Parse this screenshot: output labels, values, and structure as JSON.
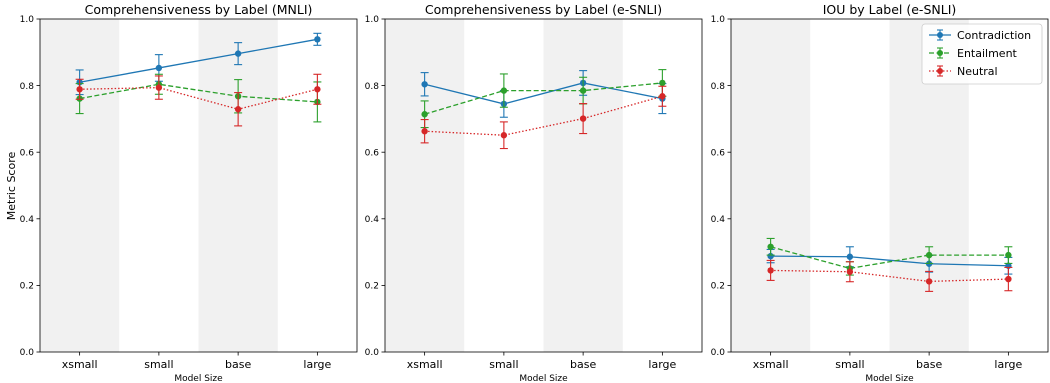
{
  "figure": {
    "ylabel": "Metric Score"
  },
  "chart_data": [
    {
      "type": "line",
      "title": "Comprehensiveness by Label (MNLI)",
      "xlabel": "Model Size",
      "ylabel": "Metric Score",
      "categories": [
        "xsmall",
        "small",
        "base",
        "large"
      ],
      "ylim": [
        0.0,
        1.0
      ],
      "yticks": [
        "0.0",
        "0.2",
        "0.4",
        "0.6",
        "0.8",
        "1.0"
      ],
      "shaded_categories": [
        "xsmall",
        "base"
      ],
      "series": [
        {
          "name": "Contradiction",
          "color": "#1f77b4",
          "linestyle": "solid",
          "values": [
            0.81,
            0.853,
            0.896,
            0.939
          ],
          "errors": [
            0.037,
            0.04,
            0.033,
            0.018
          ]
        },
        {
          "name": "Entailment",
          "color": "#2ca02c",
          "linestyle": "dashed",
          "values": [
            0.761,
            0.804,
            0.768,
            0.751
          ],
          "errors": [
            0.045,
            0.03,
            0.05,
            0.06
          ]
        },
        {
          "name": "Neutral",
          "color": "#d62728",
          "linestyle": "dotted",
          "values": [
            0.789,
            0.794,
            0.729,
            0.789
          ],
          "errors": [
            0.03,
            0.035,
            0.05,
            0.045
          ]
        }
      ]
    },
    {
      "type": "line",
      "title": "Comprehensiveness by Label (e-SNLI)",
      "xlabel": "Model Size",
      "ylabel": "",
      "categories": [
        "xsmall",
        "small",
        "base",
        "large"
      ],
      "ylim": [
        0.0,
        1.0
      ],
      "yticks": [
        "0.0",
        "0.2",
        "0.4",
        "0.6",
        "0.8",
        "1.0"
      ],
      "shaded_categories": [
        "xsmall",
        "base"
      ],
      "series": [
        {
          "name": "Contradiction",
          "color": "#1f77b4",
          "linestyle": "solid",
          "values": [
            0.804,
            0.745,
            0.808,
            0.761
          ],
          "errors": [
            0.035,
            0.04,
            0.037,
            0.045
          ]
        },
        {
          "name": "Entailment",
          "color": "#2ca02c",
          "linestyle": "dashed",
          "values": [
            0.714,
            0.785,
            0.785,
            0.808
          ],
          "errors": [
            0.04,
            0.05,
            0.04,
            0.04
          ]
        },
        {
          "name": "Neutral",
          "color": "#d62728",
          "linestyle": "dotted",
          "values": [
            0.663,
            0.651,
            0.701,
            0.768
          ],
          "errors": [
            0.035,
            0.04,
            0.045,
            0.03
          ]
        }
      ]
    },
    {
      "type": "line",
      "title": "IOU by Label (e-SNLI)",
      "xlabel": "Model Size",
      "ylabel": "",
      "categories": [
        "xsmall",
        "small",
        "base",
        "large"
      ],
      "ylim": [
        0.0,
        1.0
      ],
      "yticks": [
        "0.0",
        "0.2",
        "0.4",
        "0.6",
        "0.8",
        "1.0"
      ],
      "shaded_categories": [
        "xsmall",
        "base"
      ],
      "legend": {
        "location": "top-right"
      },
      "series": [
        {
          "name": "Contradiction",
          "color": "#1f77b4",
          "linestyle": "solid",
          "values": [
            0.288,
            0.286,
            0.265,
            0.259
          ],
          "errors": [
            0.02,
            0.03,
            0.025,
            0.025
          ]
        },
        {
          "name": "Entailment",
          "color": "#2ca02c",
          "linestyle": "dashed",
          "values": [
            0.316,
            0.251,
            0.291,
            0.291
          ],
          "errors": [
            0.025,
            0.02,
            0.025,
            0.025
          ]
        },
        {
          "name": "Neutral",
          "color": "#d62728",
          "linestyle": "dotted",
          "values": [
            0.245,
            0.241,
            0.212,
            0.219
          ],
          "errors": [
            0.03,
            0.03,
            0.03,
            0.035
          ]
        }
      ]
    }
  ]
}
